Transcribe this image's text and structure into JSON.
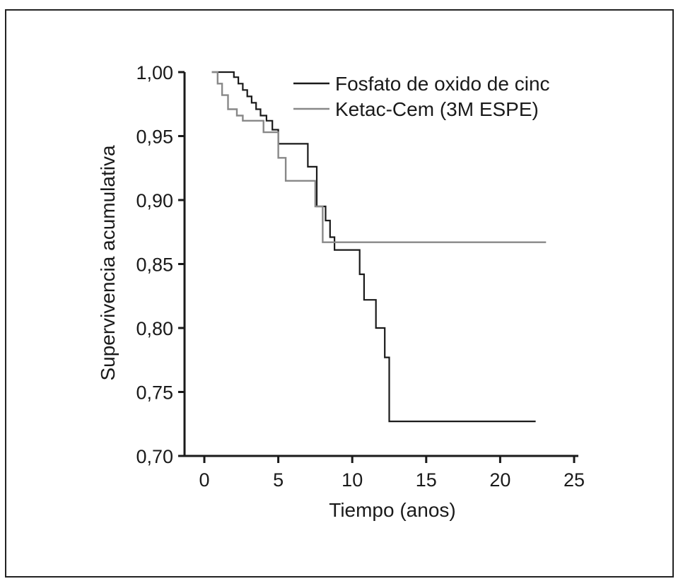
{
  "chart_data": {
    "type": "line",
    "title": "",
    "xlabel": "Tiempo (anos)",
    "ylabel": "Supervivencia acumulativa",
    "xlim": [
      0,
      25
    ],
    "ylim": [
      0.7,
      1.0
    ],
    "x_ticks": [
      "0",
      "5",
      "10",
      "15",
      "20",
      "25"
    ],
    "y_ticks": [
      "1,00",
      "0,95",
      "0,90",
      "0,85",
      "0,80",
      "0,75",
      "0,70"
    ],
    "x_tick_values": [
      0,
      5,
      10,
      15,
      20,
      25
    ],
    "y_tick_values": [
      1.0,
      0.95,
      0.9,
      0.85,
      0.8,
      0.75,
      0.7
    ],
    "grid": false,
    "legend_position": "top-right",
    "series": [
      {
        "name": "Fosfato de oxido de cinc",
        "color": "#1a1a1a",
        "step": "post",
        "points": [
          [
            0.5,
            1.0
          ],
          [
            2.0,
            0.996
          ],
          [
            2.3,
            0.991
          ],
          [
            2.6,
            0.986
          ],
          [
            2.9,
            0.981
          ],
          [
            3.2,
            0.976
          ],
          [
            3.5,
            0.971
          ],
          [
            3.8,
            0.966
          ],
          [
            4.2,
            0.962
          ],
          [
            4.6,
            0.955
          ],
          [
            5.0,
            0.944
          ],
          [
            7.0,
            0.926
          ],
          [
            7.6,
            0.895
          ],
          [
            8.2,
            0.884
          ],
          [
            8.5,
            0.871
          ],
          [
            8.8,
            0.861
          ],
          [
            10.5,
            0.842
          ],
          [
            10.8,
            0.822
          ],
          [
            11.6,
            0.8
          ],
          [
            12.2,
            0.777
          ],
          [
            12.5,
            0.727
          ],
          [
            22.4,
            0.727
          ]
        ]
      },
      {
        "name": "Ketac-Cem (3M ESPE)",
        "color": "#888888",
        "step": "post",
        "points": [
          [
            0.5,
            1.0
          ],
          [
            0.9,
            0.991
          ],
          [
            1.2,
            0.982
          ],
          [
            1.6,
            0.971
          ],
          [
            2.2,
            0.966
          ],
          [
            2.6,
            0.962
          ],
          [
            4.0,
            0.953
          ],
          [
            5.0,
            0.933
          ],
          [
            5.5,
            0.915
          ],
          [
            7.5,
            0.895
          ],
          [
            8.0,
            0.867
          ],
          [
            23.1,
            0.867
          ]
        ]
      }
    ]
  }
}
